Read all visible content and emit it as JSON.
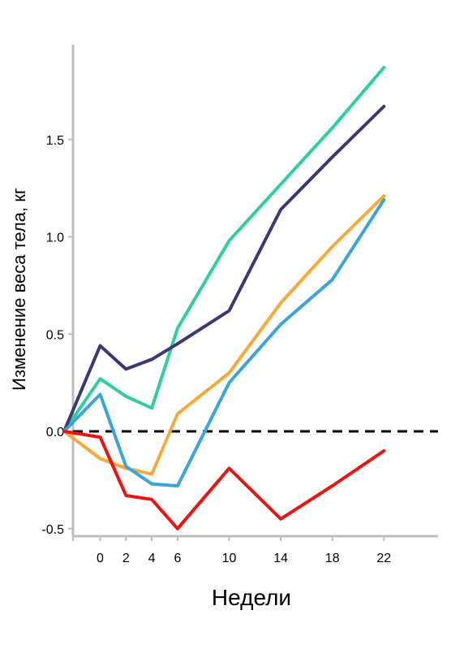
{
  "chart_data": {
    "type": "line",
    "title": "",
    "xlabel": "Недели",
    "ylabel": "Изменение веса тела, кг",
    "x": [
      -2.8,
      0,
      2,
      4,
      6,
      10,
      14,
      18,
      22
    ],
    "x_tick_labels": [
      "0",
      "2",
      "4",
      "6",
      "10",
      "14",
      "18",
      "22"
    ],
    "y_tick_labels": [
      "-0.5",
      "0.0",
      "0.5",
      "1.0",
      "1.5"
    ],
    "y_ticks": [
      -0.5,
      0.0,
      0.5,
      1.0,
      1.5
    ],
    "ylim": [
      -0.5,
      1.99
    ],
    "grid": false,
    "legend": "none",
    "reference_line": {
      "y": 0,
      "style": "dashed",
      "color": "#000000"
    },
    "series": [
      {
        "color": "#2ecf9f",
        "values": [
          0.0,
          0.27,
          0.18,
          0.12,
          0.53,
          0.98,
          1.27,
          1.56,
          1.87
        ]
      },
      {
        "color": "#3a3a72",
        "values": [
          0.0,
          0.44,
          0.32,
          0.37,
          0.45,
          0.62,
          1.14,
          1.41,
          1.67
        ]
      },
      {
        "color": "#f9a83a",
        "values": [
          0.0,
          -0.14,
          -0.19,
          -0.22,
          0.09,
          0.3,
          0.66,
          0.95,
          1.21
        ]
      },
      {
        "color": "#3aa5dc",
        "values": [
          0.0,
          0.19,
          -0.18,
          -0.27,
          -0.28,
          0.25,
          0.55,
          0.78,
          1.19
        ]
      },
      {
        "color": "#ee1111",
        "values": [
          0.0,
          -0.03,
          -0.33,
          -0.35,
          -0.5,
          -0.19,
          -0.45,
          -0.28,
          -0.1
        ]
      }
    ]
  }
}
